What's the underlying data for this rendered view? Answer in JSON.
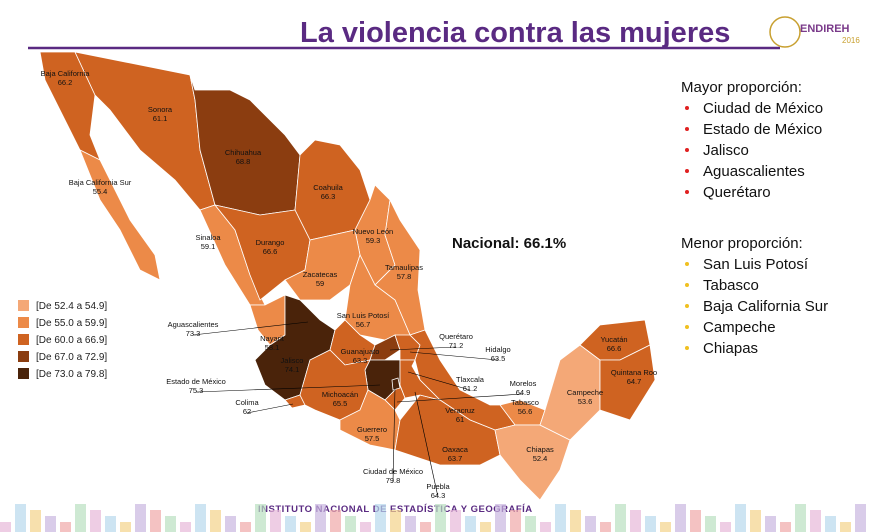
{
  "header": {
    "title": "La violencia contra las mujeres",
    "logo": "ENDIREH",
    "logo_year": "2016"
  },
  "national": "Nacional: 66.1%",
  "legend": [
    {
      "label": "[De 52.4 a 54.9]",
      "color": "#f4a877"
    },
    {
      "label": "[De 55.0 a 59.9]",
      "color": "#ec8a48"
    },
    {
      "label": "[De 60.0 a 66.9]",
      "color": "#cf6321"
    },
    {
      "label": "[De 67.0 a 72.9]",
      "color": "#8b3d10"
    },
    {
      "label": "[De 73.0 a 79.8]",
      "color": "#4a230a"
    }
  ],
  "states": [
    {
      "name": "Baja California",
      "value": 66.2,
      "color": "#cf6321"
    },
    {
      "name": "Sonora",
      "value": 61.1,
      "color": "#cf6321"
    },
    {
      "name": "Chihuahua",
      "value": 68.8,
      "color": "#8b3d10"
    },
    {
      "name": "Baja California Sur",
      "value": 55.4,
      "color": "#ec8a48"
    },
    {
      "name": "Coahuila",
      "value": 66.3,
      "color": "#cf6321"
    },
    {
      "name": "Sinaloa",
      "value": 59.1,
      "color": "#ec8a48"
    },
    {
      "name": "Durango",
      "value": 66.6,
      "color": "#cf6321"
    },
    {
      "name": "Nuevo León",
      "value": 59.3,
      "color": "#ec8a48"
    },
    {
      "name": "Tamaulipas",
      "value": 57.8,
      "color": "#ec8a48"
    },
    {
      "name": "Zacatecas",
      "value": 59.0,
      "color": "#ec8a48"
    },
    {
      "name": "San Luis Potosí",
      "value": 56.7,
      "color": "#ec8a48"
    },
    {
      "name": "Aguascalientes",
      "value": 73.3,
      "color": "#4a230a"
    },
    {
      "name": "Nayarit",
      "value": 58.1,
      "color": "#ec8a48"
    },
    {
      "name": "Jalisco",
      "value": 74.1,
      "color": "#4a230a"
    },
    {
      "name": "Guanajuato",
      "value": 63.3,
      "color": "#cf6321"
    },
    {
      "name": "Querétaro",
      "value": 71.2,
      "color": "#8b3d10"
    },
    {
      "name": "Hidalgo",
      "value": 63.5,
      "color": "#cf6321"
    },
    {
      "name": "Estado de México",
      "value": 75.3,
      "color": "#4a230a"
    },
    {
      "name": "Colima",
      "value": 62.0,
      "color": "#cf6321"
    },
    {
      "name": "Michoacán",
      "value": 65.5,
      "color": "#cf6321"
    },
    {
      "name": "Tlaxcala",
      "value": 61.2,
      "color": "#cf6321"
    },
    {
      "name": "Morelos",
      "value": 64.9,
      "color": "#cf6321"
    },
    {
      "name": "Tabasco",
      "value": 56.6,
      "color": "#ec8a48"
    },
    {
      "name": "Veracruz",
      "value": 61.0,
      "color": "#cf6321"
    },
    {
      "name": "Guerrero",
      "value": 57.5,
      "color": "#ec8a48"
    },
    {
      "name": "Oaxaca",
      "value": 63.7,
      "color": "#cf6321"
    },
    {
      "name": "Chiapas",
      "value": 52.4,
      "color": "#f4a877"
    },
    {
      "name": "Ciudad de México",
      "value": 79.8,
      "color": "#4a230a"
    },
    {
      "name": "Puebla",
      "value": 64.3,
      "color": "#cf6321"
    },
    {
      "name": "Campeche",
      "value": 53.6,
      "color": "#f4a877"
    },
    {
      "name": "Yucatán",
      "value": 66.6,
      "color": "#cf6321"
    },
    {
      "name": "Quintana Roo",
      "value": 64.7,
      "color": "#cf6321"
    }
  ],
  "highest": {
    "title": "Mayor proporción:",
    "items": [
      "Ciudad de México",
      "Estado de México",
      "Jalisco",
      "Aguascalientes",
      "Querétaro"
    ]
  },
  "lowest": {
    "title": "Menor proporción:",
    "items": [
      "San Luis Potosí",
      "Tabasco",
      "Baja California Sur",
      "Campeche",
      "Chiapas"
    ]
  },
  "footer": "INSTITUTO NACIONAL  DE ESTADÍSTICA Y GEOGRAFÍA"
}
